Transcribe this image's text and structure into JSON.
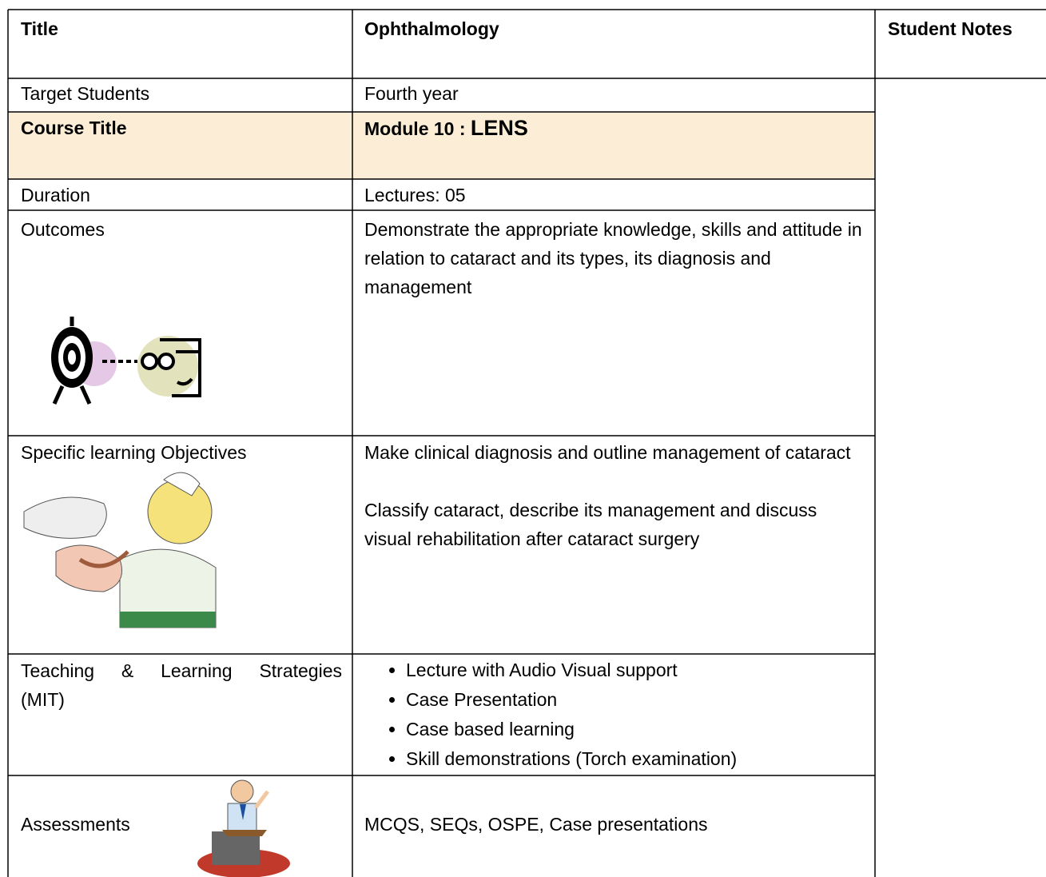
{
  "header": {
    "title_label": "Title",
    "title_value": "Ophthalmology",
    "notes": "Student Notes"
  },
  "rows": [
    {
      "label": "Target Students",
      "content": "Fourth year"
    },
    {
      "label": "Course Title",
      "content": "Module 10 : ",
      "content_emphasis": "LENS"
    },
    {
      "label": "Duration",
      "content": "Lectures: 05"
    },
    {
      "label": "Outcomes",
      "content": "Demonstrate the appropriate knowledge, skills and attitude in relation to cataract and its types, its diagnosis and management"
    },
    {
      "label": "Specific  learning Objectives",
      "paragraphs": [
        "Make clinical diagnosis and outline management of cataract",
        "Classify cataract, describe its management and discuss visual rehabilitation after cataract surgery"
      ]
    },
    {
      "label": "Teaching & Learning Strategies (MIT)",
      "bullets": [
        "Lecture with Audio Visual support",
        "Case Presentation",
        "Case based learning",
        "Skill demonstrations (Torch examination)"
      ]
    },
    {
      "label": "Assessments",
      "content": "MCQS, SEQs, OSPE, Case presentations"
    }
  ]
}
